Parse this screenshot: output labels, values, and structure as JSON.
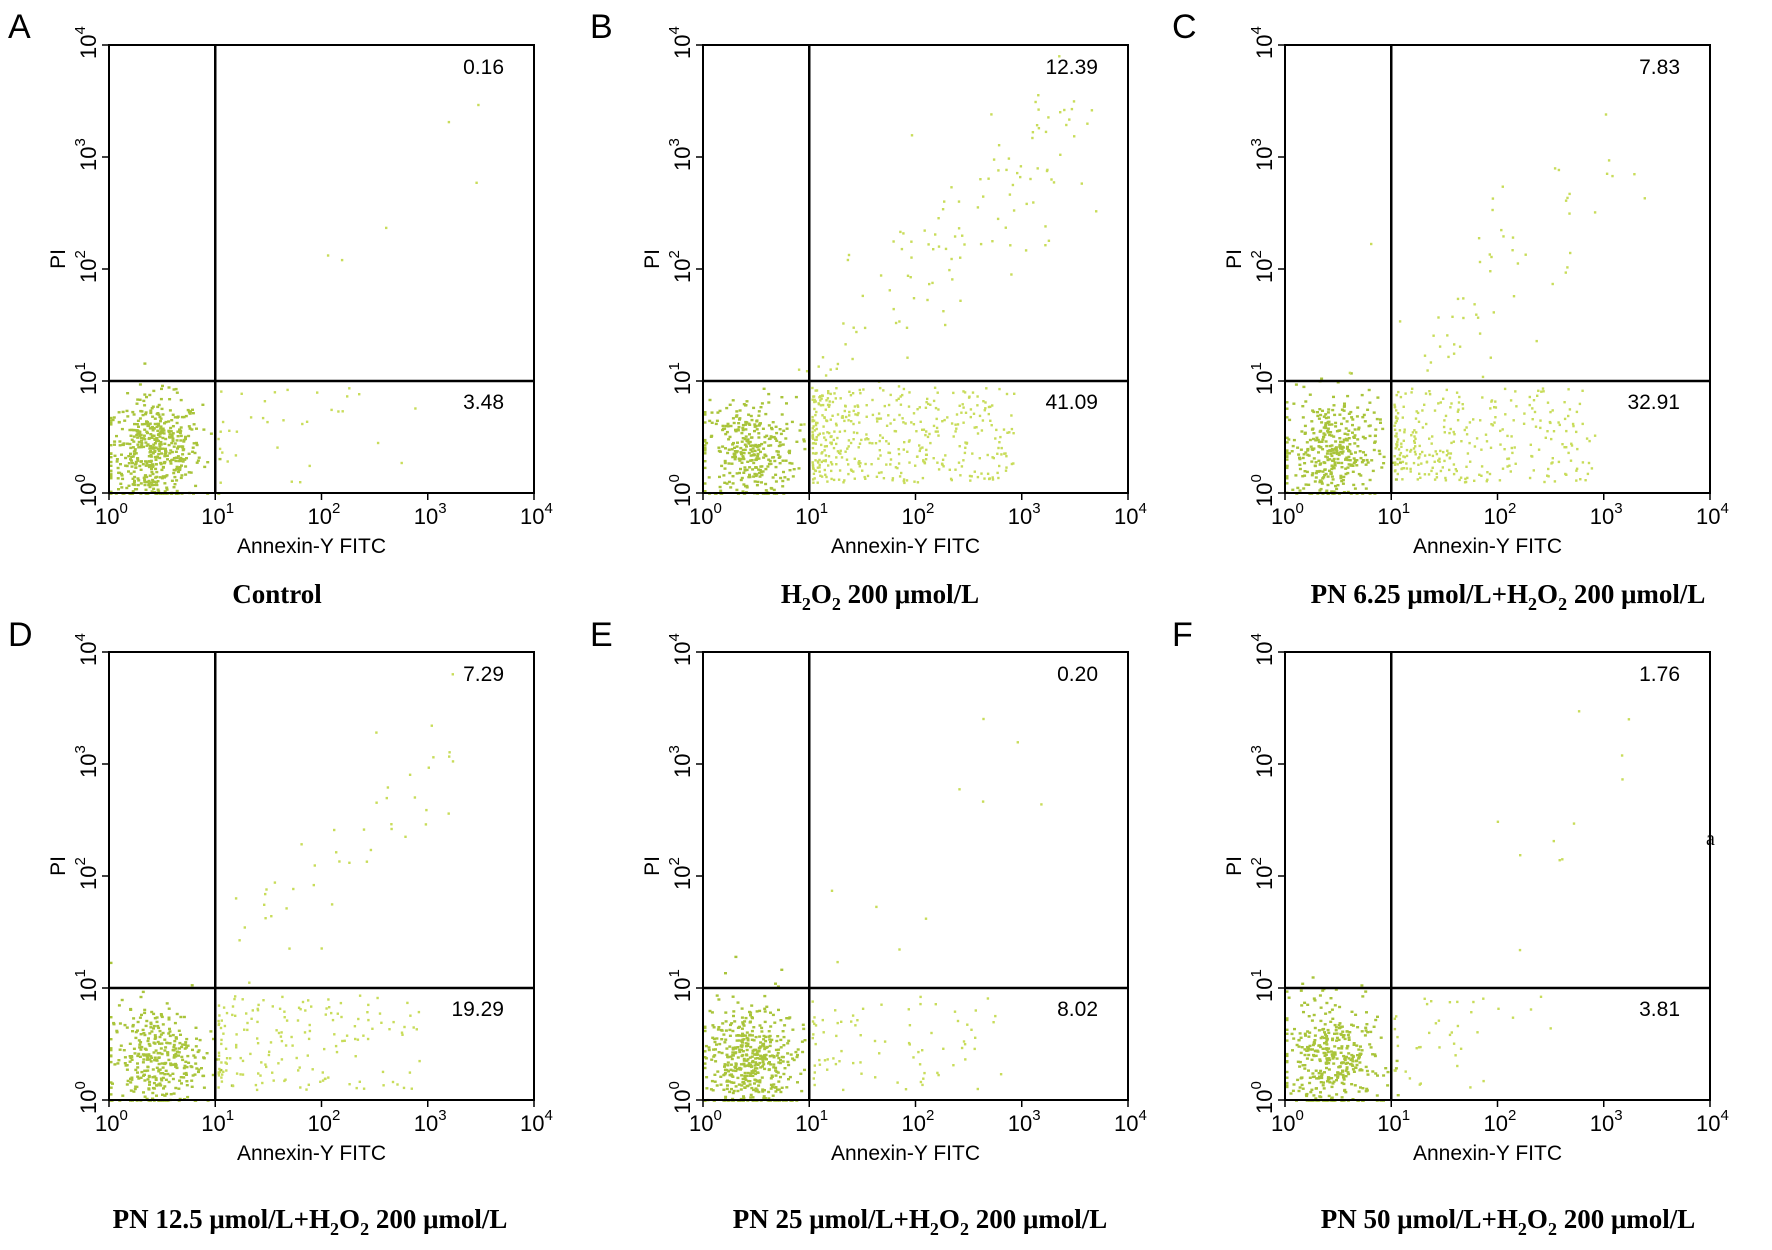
{
  "chart_data": [
    {
      "type": "scatter",
      "panel_letter": "A",
      "caption": "Control",
      "xlabel": "Annexin-Y FITC",
      "ylabel": "PI",
      "x_scale": "log",
      "y_scale": "log",
      "xlim": [
        1,
        10000
      ],
      "ylim": [
        1,
        10000
      ],
      "x_ticks": [
        {
          "base": "10",
          "exp": "0"
        },
        {
          "base": "10",
          "exp": "1"
        },
        {
          "base": "10",
          "exp": "2"
        },
        {
          "base": "10",
          "exp": "3"
        },
        {
          "base": "10",
          "exp": "4"
        }
      ],
      "y_ticks": [
        {
          "base": "10",
          "exp": "0"
        },
        {
          "base": "10",
          "exp": "1"
        },
        {
          "base": "10",
          "exp": "2"
        },
        {
          "base": "10",
          "exp": "3"
        },
        {
          "base": "10",
          "exp": "4"
        }
      ],
      "quadrant_gate": {
        "x": 10,
        "y": 10
      },
      "quadrants": {
        "upper_right": "0.16",
        "lower_right": "3.48"
      },
      "events": {
        "lower_left": 520,
        "lower_right": 35,
        "upper_right": 6
      }
    },
    {
      "type": "scatter",
      "panel_letter": "B",
      "caption_parts": [
        "H",
        "2",
        "O",
        "2",
        " 200 μmol/L"
      ],
      "xlabel": "Annexin-Y FITC",
      "ylabel": "PI",
      "x_scale": "log",
      "y_scale": "log",
      "xlim": [
        1,
        10000
      ],
      "ylim": [
        1,
        10000
      ],
      "x_ticks": [
        {
          "base": "10",
          "exp": "0"
        },
        {
          "base": "10",
          "exp": "1"
        },
        {
          "base": "10",
          "exp": "2"
        },
        {
          "base": "10",
          "exp": "3"
        },
        {
          "base": "10",
          "exp": "4"
        }
      ],
      "y_ticks": [
        {
          "base": "10",
          "exp": "0"
        },
        {
          "base": "10",
          "exp": "1"
        },
        {
          "base": "10",
          "exp": "2"
        },
        {
          "base": "10",
          "exp": "3"
        },
        {
          "base": "10",
          "exp": "4"
        }
      ],
      "quadrant_gate": {
        "x": 10,
        "y": 10
      },
      "quadrants": {
        "upper_right": "12.39",
        "lower_right": "41.09"
      },
      "events": {
        "lower_left": 340,
        "lower_right": 440,
        "upper_right": 120
      }
    },
    {
      "type": "scatter",
      "panel_letter": "C",
      "caption_parts": [
        "PN 6.25 μmol/L+H",
        "2",
        "O",
        "2",
        " 200 μmol/L"
      ],
      "xlabel": "Annexin-Y FITC",
      "ylabel": "PI",
      "x_scale": "log",
      "y_scale": "log",
      "xlim": [
        1,
        10000
      ],
      "ylim": [
        1,
        10000
      ],
      "x_ticks": [
        {
          "base": "10",
          "exp": "0"
        },
        {
          "base": "10",
          "exp": "1"
        },
        {
          "base": "10",
          "exp": "2"
        },
        {
          "base": "10",
          "exp": "3"
        },
        {
          "base": "10",
          "exp": "4"
        }
      ],
      "y_ticks": [
        {
          "base": "10",
          "exp": "0"
        },
        {
          "base": "10",
          "exp": "1"
        },
        {
          "base": "10",
          "exp": "2"
        },
        {
          "base": "10",
          "exp": "3"
        },
        {
          "base": "10",
          "exp": "4"
        }
      ],
      "quadrant_gate": {
        "x": 10,
        "y": 10
      },
      "quadrants": {
        "upper_right": "7.83",
        "lower_right": "32.91"
      },
      "events": {
        "lower_left": 380,
        "lower_right": 300,
        "upper_right": 60
      }
    },
    {
      "type": "scatter",
      "panel_letter": "D",
      "caption_parts": [
        "PN 12.5 μmol/L+H",
        "2",
        "O",
        "2",
        " 200 μmol/L"
      ],
      "xlabel": "Annexin-Y FITC",
      "ylabel": "PI",
      "x_scale": "log",
      "y_scale": "log",
      "xlim": [
        1,
        10000
      ],
      "ylim": [
        1,
        10000
      ],
      "x_ticks": [
        {
          "base": "10",
          "exp": "0"
        },
        {
          "base": "10",
          "exp": "1"
        },
        {
          "base": "10",
          "exp": "2"
        },
        {
          "base": "10",
          "exp": "3"
        },
        {
          "base": "10",
          "exp": "4"
        }
      ],
      "y_ticks": [
        {
          "base": "10",
          "exp": "0"
        },
        {
          "base": "10",
          "exp": "1"
        },
        {
          "base": "10",
          "exp": "2"
        },
        {
          "base": "10",
          "exp": "3"
        },
        {
          "base": "10",
          "exp": "4"
        }
      ],
      "quadrant_gate": {
        "x": 10,
        "y": 10
      },
      "quadrants": {
        "upper_right": "7.29",
        "lower_right": "19.29"
      },
      "events": {
        "lower_left": 360,
        "lower_right": 170,
        "upper_right": 45
      }
    },
    {
      "type": "scatter",
      "panel_letter": "E",
      "caption_parts": [
        "PN 25 μmol/L+H",
        "2",
        "O",
        "2",
        " 200 μmol/L"
      ],
      "xlabel": "Annexin-Y FITC",
      "ylabel": "PI",
      "x_scale": "log",
      "y_scale": "log",
      "xlim": [
        1,
        10000
      ],
      "ylim": [
        1,
        10000
      ],
      "x_ticks": [
        {
          "base": "10",
          "exp": "0"
        },
        {
          "base": "10",
          "exp": "1"
        },
        {
          "base": "10",
          "exp": "2"
        },
        {
          "base": "10",
          "exp": "3"
        },
        {
          "base": "10",
          "exp": "4"
        }
      ],
      "y_ticks": [
        {
          "base": "10",
          "exp": "0"
        },
        {
          "base": "10",
          "exp": "1"
        },
        {
          "base": "10",
          "exp": "2"
        },
        {
          "base": "10",
          "exp": "3"
        },
        {
          "base": "10",
          "exp": "4"
        }
      ],
      "quadrant_gate": {
        "x": 10,
        "y": 10
      },
      "quadrants": {
        "upper_right": "0.20",
        "lower_right": "8.02"
      },
      "events": {
        "lower_left": 480,
        "lower_right": 80,
        "upper_right": 10
      }
    },
    {
      "type": "scatter",
      "panel_letter": "F",
      "caption_parts": [
        "PN 50 μmol/L+H",
        "2",
        "O",
        "2",
        " 200 μmol/L"
      ],
      "xlabel": "Annexin-Y FITC",
      "ylabel": "PI",
      "x_scale": "log",
      "y_scale": "log",
      "xlim": [
        1,
        10000
      ],
      "ylim": [
        1,
        10000
      ],
      "x_ticks": [
        {
          "base": "10",
          "exp": "0"
        },
        {
          "base": "10",
          "exp": "1"
        },
        {
          "base": "10",
          "exp": "2"
        },
        {
          "base": "10",
          "exp": "3"
        },
        {
          "base": "10",
          "exp": "4"
        }
      ],
      "y_ticks": [
        {
          "base": "10",
          "exp": "0"
        },
        {
          "base": "10",
          "exp": "1"
        },
        {
          "base": "10",
          "exp": "2"
        },
        {
          "base": "10",
          "exp": "3"
        },
        {
          "base": "10",
          "exp": "4"
        }
      ],
      "quadrant_gate": {
        "x": 10,
        "y": 10
      },
      "quadrants": {
        "upper_right": "1.76",
        "lower_right": "3.81"
      },
      "events": {
        "lower_left": 400,
        "lower_right": 40,
        "upper_right": 12
      }
    }
  ],
  "stray_mark": "a",
  "colors": {
    "dots": "#c8dc5a",
    "dots_dense": "#a9c43a",
    "axis": "#000000"
  }
}
